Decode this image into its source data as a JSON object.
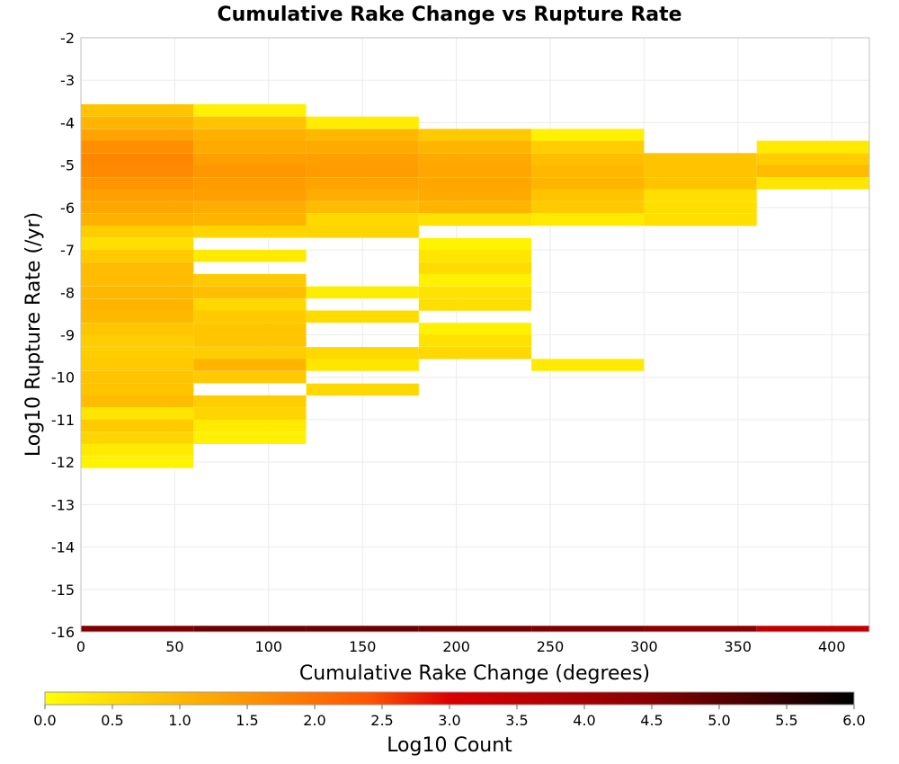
{
  "chart_data": {
    "type": "heatmap",
    "title": "Cumulative Rake Change vs Rupture Rate",
    "xlabel": "Cumulative Rake Change (degrees)",
    "ylabel": "Log10 Rupture Rate (/yr)",
    "xlim": [
      0,
      420
    ],
    "ylim": [
      -16,
      -2
    ],
    "x_ticks": [
      0,
      50,
      100,
      150,
      200,
      250,
      300,
      350,
      400
    ],
    "y_ticks": [
      -2,
      -3,
      -4,
      -5,
      -6,
      -7,
      -8,
      -9,
      -10,
      -11,
      -12,
      -13,
      -14,
      -15,
      -16
    ],
    "x_bin_width": 60,
    "y_bin_height": 0.2857,
    "grid": true,
    "colorbar": {
      "label": "Log10 Count",
      "range": [
        0.0,
        6.0
      ],
      "ticks": [
        "0.0",
        "0.5",
        "1.0",
        "1.5",
        "2.0",
        "2.5",
        "3.0",
        "3.5",
        "4.0",
        "4.5",
        "5.0",
        "5.5",
        "6.0"
      ],
      "colors": [
        "#ffff00",
        "#ffaa00",
        "#ff5500",
        "#dd0000",
        "#880000",
        "#000000"
      ]
    },
    "columns": [
      {
        "x_start": 0,
        "cells": [
          {
            "y": -3.71,
            "v": 0.85
          },
          {
            "y": -4.0,
            "v": 1.05
          },
          {
            "y": -4.29,
            "v": 1.3
          },
          {
            "y": -4.57,
            "v": 1.6
          },
          {
            "y": -4.86,
            "v": 1.7
          },
          {
            "y": -5.14,
            "v": 1.65
          },
          {
            "y": -5.43,
            "v": 1.5
          },
          {
            "y": -5.71,
            "v": 1.35
          },
          {
            "y": -6.0,
            "v": 1.25
          },
          {
            "y": -6.29,
            "v": 1.1
          },
          {
            "y": -6.57,
            "v": 0.7
          },
          {
            "y": -6.86,
            "v": 0.45
          },
          {
            "y": -7.14,
            "v": 0.75
          },
          {
            "y": -7.43,
            "v": 0.95
          },
          {
            "y": -7.71,
            "v": 0.95
          },
          {
            "y": -8.0,
            "v": 1.0
          },
          {
            "y": -8.29,
            "v": 1.05
          },
          {
            "y": -8.57,
            "v": 1.0
          },
          {
            "y": -8.86,
            "v": 0.8
          },
          {
            "y": -9.14,
            "v": 0.7
          },
          {
            "y": -9.43,
            "v": 0.7
          },
          {
            "y": -9.71,
            "v": 0.75
          },
          {
            "y": -10.0,
            "v": 0.85
          },
          {
            "y": -10.29,
            "v": 0.85
          },
          {
            "y": -10.57,
            "v": 0.95
          },
          {
            "y": -10.86,
            "v": 0.35
          },
          {
            "y": -11.14,
            "v": 0.75
          },
          {
            "y": -11.43,
            "v": 0.6
          },
          {
            "y": -11.71,
            "v": 0.3
          },
          {
            "y": -12.0,
            "v": 0.15
          }
        ]
      },
      {
        "x_start": 60,
        "cells": [
          {
            "y": -3.71,
            "v": 0.2
          },
          {
            "y": -4.0,
            "v": 0.85
          },
          {
            "y": -4.29,
            "v": 1.1
          },
          {
            "y": -4.57,
            "v": 1.2
          },
          {
            "y": -4.86,
            "v": 1.35
          },
          {
            "y": -5.14,
            "v": 1.45
          },
          {
            "y": -5.43,
            "v": 1.4
          },
          {
            "y": -5.71,
            "v": 1.35
          },
          {
            "y": -6.0,
            "v": 1.15
          },
          {
            "y": -6.29,
            "v": 1.05
          },
          {
            "y": -6.57,
            "v": 0.6
          },
          {
            "y": -7.14,
            "v": 0.3
          },
          {
            "y": -7.71,
            "v": 0.75
          },
          {
            "y": -8.0,
            "v": 0.9
          },
          {
            "y": -8.29,
            "v": 0.55
          },
          {
            "y": -8.57,
            "v": 0.75
          },
          {
            "y": -8.86,
            "v": 0.8
          },
          {
            "y": -9.14,
            "v": 0.8
          },
          {
            "y": -9.43,
            "v": 0.7
          },
          {
            "y": -9.71,
            "v": 1.05
          },
          {
            "y": -10.0,
            "v": 0.75
          },
          {
            "y": -10.57,
            "v": 0.7
          },
          {
            "y": -10.86,
            "v": 0.6
          },
          {
            "y": -11.14,
            "v": 0.3
          },
          {
            "y": -11.43,
            "v": 0.2
          }
        ]
      },
      {
        "x_start": 120,
        "cells": [
          {
            "y": -4.0,
            "v": 0.25
          },
          {
            "y": -4.29,
            "v": 1.0
          },
          {
            "y": -4.57,
            "v": 1.2
          },
          {
            "y": -4.86,
            "v": 1.35
          },
          {
            "y": -5.14,
            "v": 1.4
          },
          {
            "y": -5.43,
            "v": 1.3
          },
          {
            "y": -5.71,
            "v": 1.15
          },
          {
            "y": -6.0,
            "v": 0.95
          },
          {
            "y": -6.29,
            "v": 0.55
          },
          {
            "y": -6.57,
            "v": 0.6
          },
          {
            "y": -8.0,
            "v": 0.25
          },
          {
            "y": -8.57,
            "v": 0.5
          },
          {
            "y": -9.43,
            "v": 0.55
          },
          {
            "y": -9.71,
            "v": 0.35
          },
          {
            "y": -10.29,
            "v": 0.55
          }
        ]
      },
      {
        "x_start": 180,
        "cells": [
          {
            "y": -4.29,
            "v": 0.75
          },
          {
            "y": -4.57,
            "v": 1.05
          },
          {
            "y": -4.86,
            "v": 1.2
          },
          {
            "y": -5.14,
            "v": 1.25
          },
          {
            "y": -5.43,
            "v": 1.25
          },
          {
            "y": -5.71,
            "v": 1.2
          },
          {
            "y": -6.0,
            "v": 1.05
          },
          {
            "y": -6.29,
            "v": 0.4
          },
          {
            "y": -6.86,
            "v": 0.15
          },
          {
            "y": -7.14,
            "v": 0.35
          },
          {
            "y": -7.43,
            "v": 0.5
          },
          {
            "y": -7.71,
            "v": 0.2
          },
          {
            "y": -8.0,
            "v": 0.4
          },
          {
            "y": -8.29,
            "v": 0.45
          },
          {
            "y": -8.86,
            "v": 0.2
          },
          {
            "y": -9.14,
            "v": 0.4
          },
          {
            "y": -9.43,
            "v": 0.55
          }
        ]
      },
      {
        "x_start": 240,
        "cells": [
          {
            "y": -4.29,
            "v": 0.2
          },
          {
            "y": -4.57,
            "v": 0.7
          },
          {
            "y": -4.86,
            "v": 0.9
          },
          {
            "y": -5.14,
            "v": 1.0
          },
          {
            "y": -5.43,
            "v": 1.05
          },
          {
            "y": -5.71,
            "v": 0.85
          },
          {
            "y": -6.0,
            "v": 0.75
          },
          {
            "y": -6.29,
            "v": 0.3
          },
          {
            "y": -9.71,
            "v": 0.3
          }
        ]
      },
      {
        "x_start": 300,
        "cells": [
          {
            "y": -4.86,
            "v": 0.85
          },
          {
            "y": -5.14,
            "v": 0.85
          },
          {
            "y": -5.43,
            "v": 0.85
          },
          {
            "y": -5.71,
            "v": 0.45
          },
          {
            "y": -6.0,
            "v": 0.45
          },
          {
            "y": -6.29,
            "v": 0.45
          }
        ]
      },
      {
        "x_start": 360,
        "cells": [
          {
            "y": -4.57,
            "v": 0.3
          },
          {
            "y": -4.86,
            "v": 0.7
          },
          {
            "y": -5.14,
            "v": 0.95
          },
          {
            "y": -5.43,
            "v": 0.35
          }
        ]
      }
    ],
    "bottom_row": [
      {
        "x_start": 0,
        "v": 4.6
      },
      {
        "x_start": 60,
        "v": 4.8
      },
      {
        "x_start": 120,
        "v": 4.8
      },
      {
        "x_start": 180,
        "v": 4.7
      },
      {
        "x_start": 240,
        "v": 4.6
      },
      {
        "x_start": 300,
        "v": 4.45
      },
      {
        "x_start": 360,
        "v": 3.5
      }
    ],
    "bottom_row_y": -16.0
  }
}
